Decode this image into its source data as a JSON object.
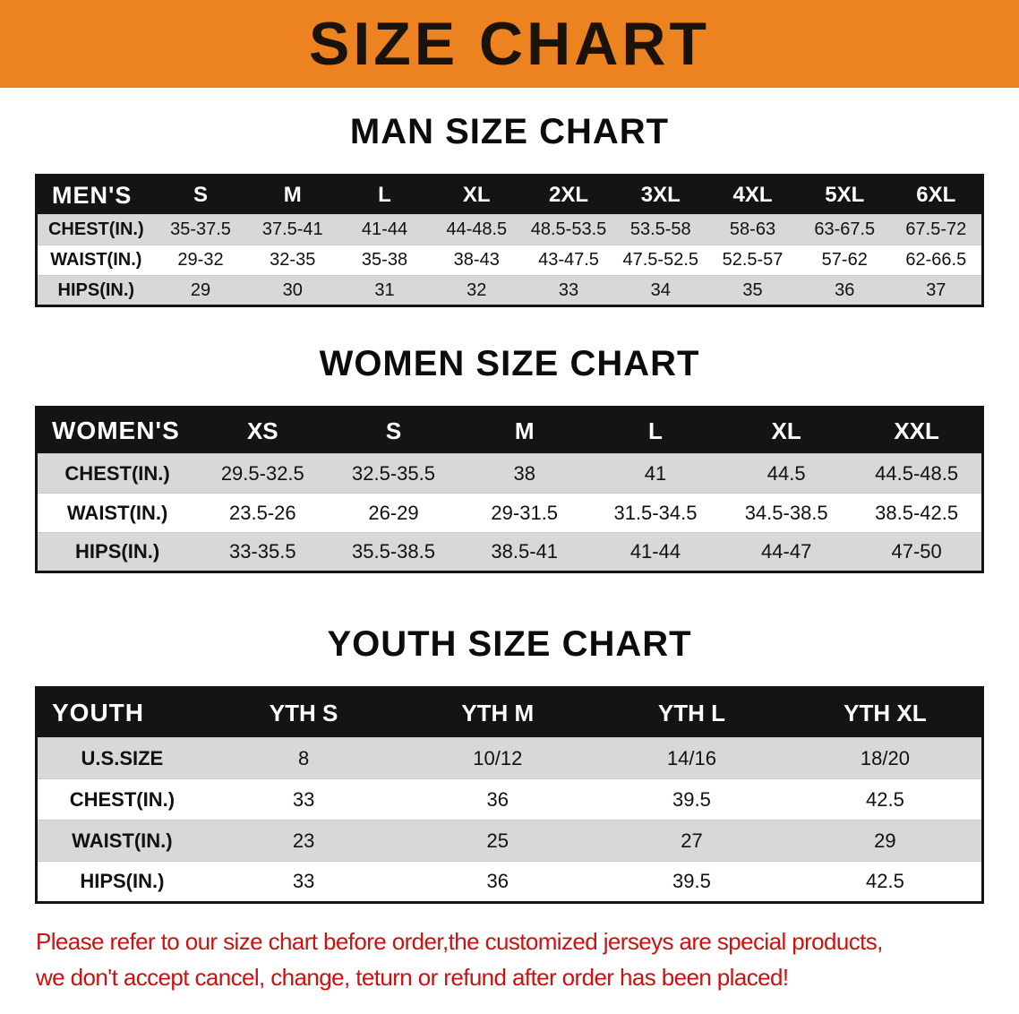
{
  "banner": {
    "title": "SIZE CHART"
  },
  "men": {
    "heading": "MAN SIZE CHART",
    "table": {
      "corner": "MEN'S",
      "columns": [
        "S",
        "M",
        "L",
        "XL",
        "2XL",
        "3XL",
        "4XL",
        "5XL",
        "6XL"
      ],
      "rows": [
        {
          "label": "CHEST(IN.)",
          "values": [
            "35-37.5",
            "37.5-41",
            "41-44",
            "44-48.5",
            "48.5-53.5",
            "53.5-58",
            "58-63",
            "63-67.5",
            "67.5-72"
          ]
        },
        {
          "label": "WAIST(IN.)",
          "values": [
            "29-32",
            "32-35",
            "35-38",
            "38-43",
            "43-47.5",
            "47.5-52.5",
            "52.5-57",
            "57-62",
            "62-66.5"
          ]
        },
        {
          "label": "HIPS(IN.)",
          "values": [
            "29",
            "30",
            "31",
            "32",
            "33",
            "34",
            "35",
            "36",
            "37"
          ]
        }
      ]
    }
  },
  "women": {
    "heading": "WOMEN SIZE CHART",
    "table": {
      "corner": "WOMEN'S",
      "columns": [
        "XS",
        "S",
        "M",
        "L",
        "XL",
        "XXL"
      ],
      "rows": [
        {
          "label": "CHEST(IN.)",
          "values": [
            "29.5-32.5",
            "32.5-35.5",
            "38",
            "41",
            "44.5",
            "44.5-48.5"
          ]
        },
        {
          "label": "WAIST(IN.)",
          "values": [
            "23.5-26",
            "26-29",
            "29-31.5",
            "31.5-34.5",
            "34.5-38.5",
            "38.5-42.5"
          ]
        },
        {
          "label": "HIPS(IN.)",
          "values": [
            "33-35.5",
            "35.5-38.5",
            "38.5-41",
            "41-44",
            "44-47",
            "47-50"
          ]
        }
      ]
    }
  },
  "youth": {
    "heading": "YOUTH SIZE CHART",
    "table": {
      "corner": "YOUTH",
      "columns": [
        "YTH S",
        "YTH M",
        "YTH L",
        "YTH XL"
      ],
      "rows": [
        {
          "label": "U.S.SIZE",
          "values": [
            "8",
            "10/12",
            "14/16",
            "18/20"
          ]
        },
        {
          "label": "CHEST(IN.)",
          "values": [
            "33",
            "36",
            "39.5",
            "42.5"
          ]
        },
        {
          "label": "WAIST(IN.)",
          "values": [
            "23",
            "25",
            "27",
            "29"
          ]
        },
        {
          "label": "HIPS(IN.)",
          "values": [
            "33",
            "36",
            "39.5",
            "42.5"
          ]
        }
      ]
    }
  },
  "footer": {
    "line1": "Please refer to our size chart before order,the customized jerseys are special products,",
    "line2": "we don't accept cancel, change, teturn or refund after order has been placed!"
  },
  "colors": {
    "banner_bg": "#ec8220",
    "header_bg": "#141414",
    "row_shade": "#d8d8d8",
    "footer_text": "#cc1111"
  }
}
